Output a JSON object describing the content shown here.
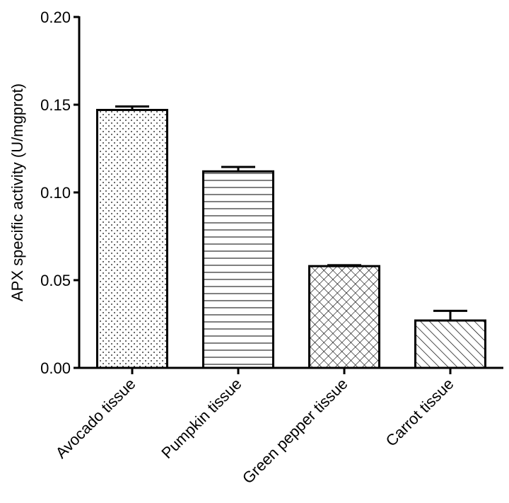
{
  "chart_data": {
    "type": "bar",
    "title": "",
    "xlabel": "",
    "ylabel": "APX specific activity (U/mgprot)",
    "ylim": [
      0,
      0.2
    ],
    "yticks": [
      "0.00",
      "0.05",
      "0.10",
      "0.15",
      "0.20"
    ],
    "categories": [
      "Avocado tissue",
      "Pumpkin tissue",
      "Green pepper tissue",
      "Carrot tissue"
    ],
    "values": [
      0.147,
      0.112,
      0.058,
      0.027
    ],
    "errors": [
      0.002,
      0.0025,
      0.0005,
      0.0055
    ],
    "patterns": [
      "dots",
      "horizontal-lines",
      "crosshatch",
      "diagonal-lines"
    ],
    "bar_color": "#000000",
    "background": "#ffffff",
    "grid": false,
    "legend": "none"
  }
}
